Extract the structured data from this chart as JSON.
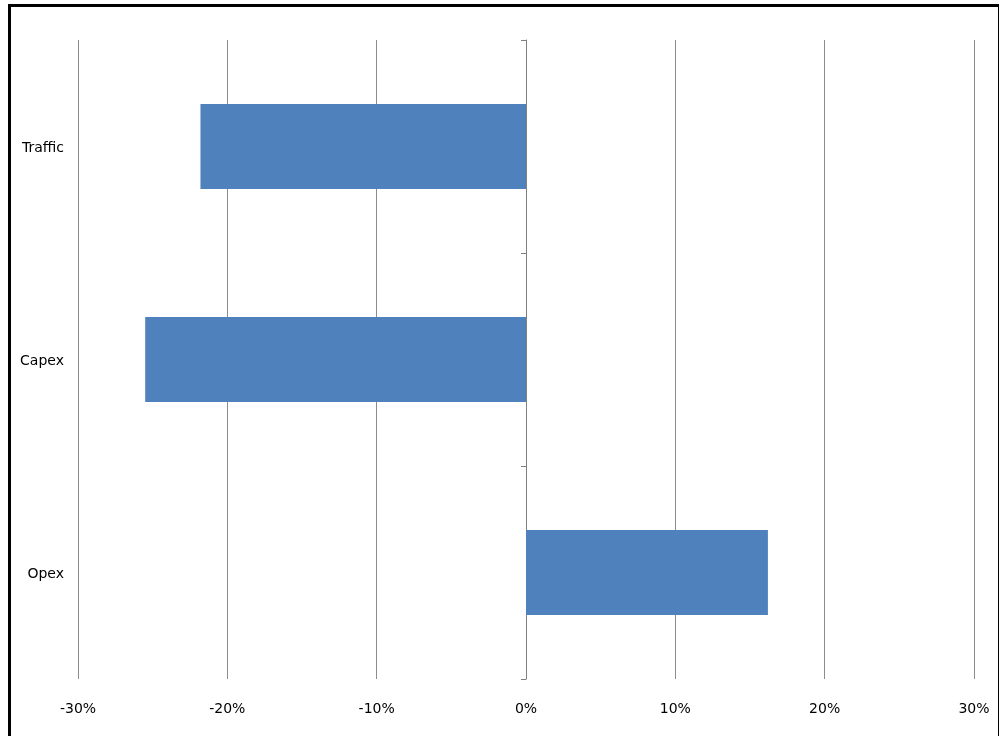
{
  "chart_data": {
    "type": "bar",
    "orientation": "horizontal",
    "categories": [
      "Traffic",
      "Capex",
      "Opex"
    ],
    "values": [
      -21.8,
      -25.5,
      16.2
    ],
    "color": "#4f81bd",
    "xlim": [
      -30,
      30
    ],
    "xticks": [
      {
        "value": -30,
        "label": "-30%"
      },
      {
        "value": -20,
        "label": "-20%"
      },
      {
        "value": -10,
        "label": "-10%"
      },
      {
        "value": 0,
        "label": "0%"
      },
      {
        "value": 10,
        "label": "10%"
      },
      {
        "value": 20,
        "label": "20%"
      },
      {
        "value": 30,
        "label": "30%"
      }
    ],
    "grid": "x"
  }
}
